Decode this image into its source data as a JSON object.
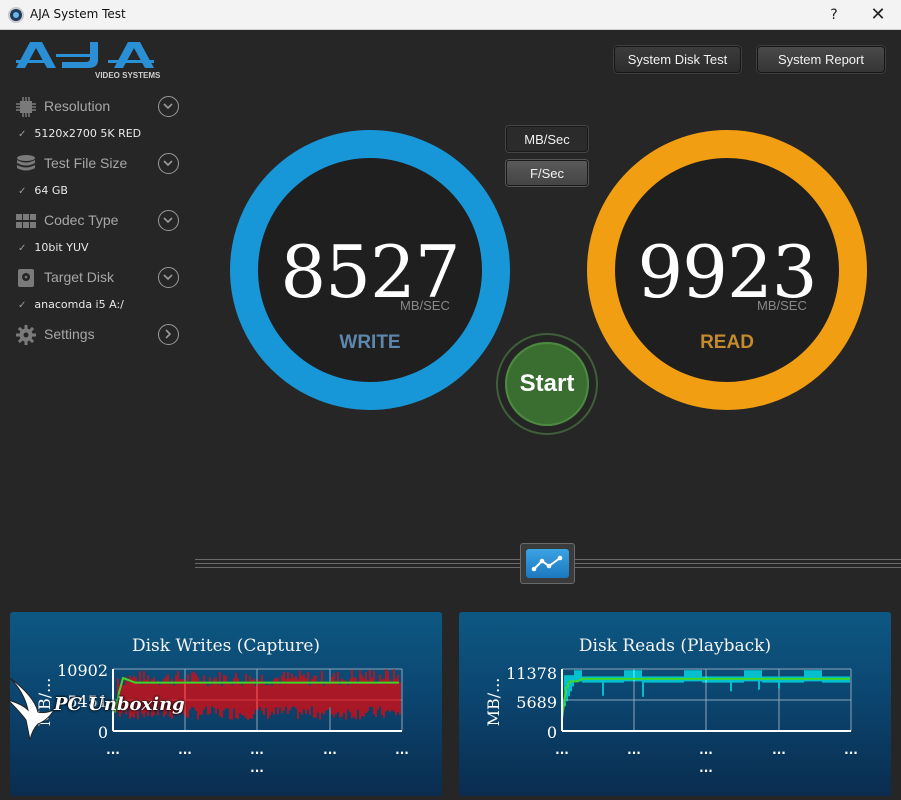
{
  "window": {
    "title": "AJA System Test",
    "help_label": "?",
    "close_label": "✕"
  },
  "logo": {
    "brand": "AJA",
    "subtitle": "VIDEO SYSTEMS"
  },
  "sidebar": {
    "items": [
      {
        "label": "Resolution",
        "value": "5120x2700 5K RED",
        "icon": "chip-icon",
        "chevron": "chevron-down-icon"
      },
      {
        "label": "Test File Size",
        "value": "64 GB",
        "icon": "stack-icon",
        "chevron": "chevron-down-icon"
      },
      {
        "label": "Codec Type",
        "value": "10bit YUV",
        "icon": "grid-icon",
        "chevron": "chevron-down-icon"
      },
      {
        "label": "Target Disk",
        "value": "anacomda i5 A:/",
        "icon": "disk-icon",
        "chevron": "chevron-down-icon"
      },
      {
        "label": "Settings",
        "value": "",
        "icon": "gear-icon",
        "chevron": "chevron-right-icon"
      }
    ],
    "check_mark": "✓"
  },
  "toolbar": {
    "system_disk_test": "System Disk Test",
    "system_report": "System Report",
    "mb_sec": "MB/Sec",
    "f_sec": "F/Sec"
  },
  "gauges": {
    "write": {
      "value": "8527",
      "unit": "MB/SEC",
      "label": "WRITE",
      "color": "#1797d7"
    },
    "read": {
      "value": "9923",
      "unit": "MB/SEC",
      "label": "READ",
      "color": "#f29e13"
    }
  },
  "start": {
    "label": "Start",
    "color": "#3a6e31"
  },
  "charts": {
    "writes": {
      "title": "Disk Writes (Capture)",
      "ylabel": "MB/...",
      "yticks": [
        "10902",
        "5451",
        "0"
      ],
      "xticks": [
        "...",
        "...",
        "...",
        "...",
        "..."
      ],
      "xlabel": "...",
      "bar_color": "#ff0000",
      "line_color": "#3fd62a"
    },
    "reads": {
      "title": "Disk Reads (Playback)",
      "ylabel": "MB/...",
      "yticks": [
        "11378",
        "5689",
        "0"
      ],
      "xticks": [
        "...",
        "...",
        "...",
        "...",
        "..."
      ],
      "xlabel": "...",
      "bar_color": "#00ffff",
      "line_color": "#3fd62a"
    }
  },
  "watermark": {
    "text": "PC Unboxing"
  }
}
